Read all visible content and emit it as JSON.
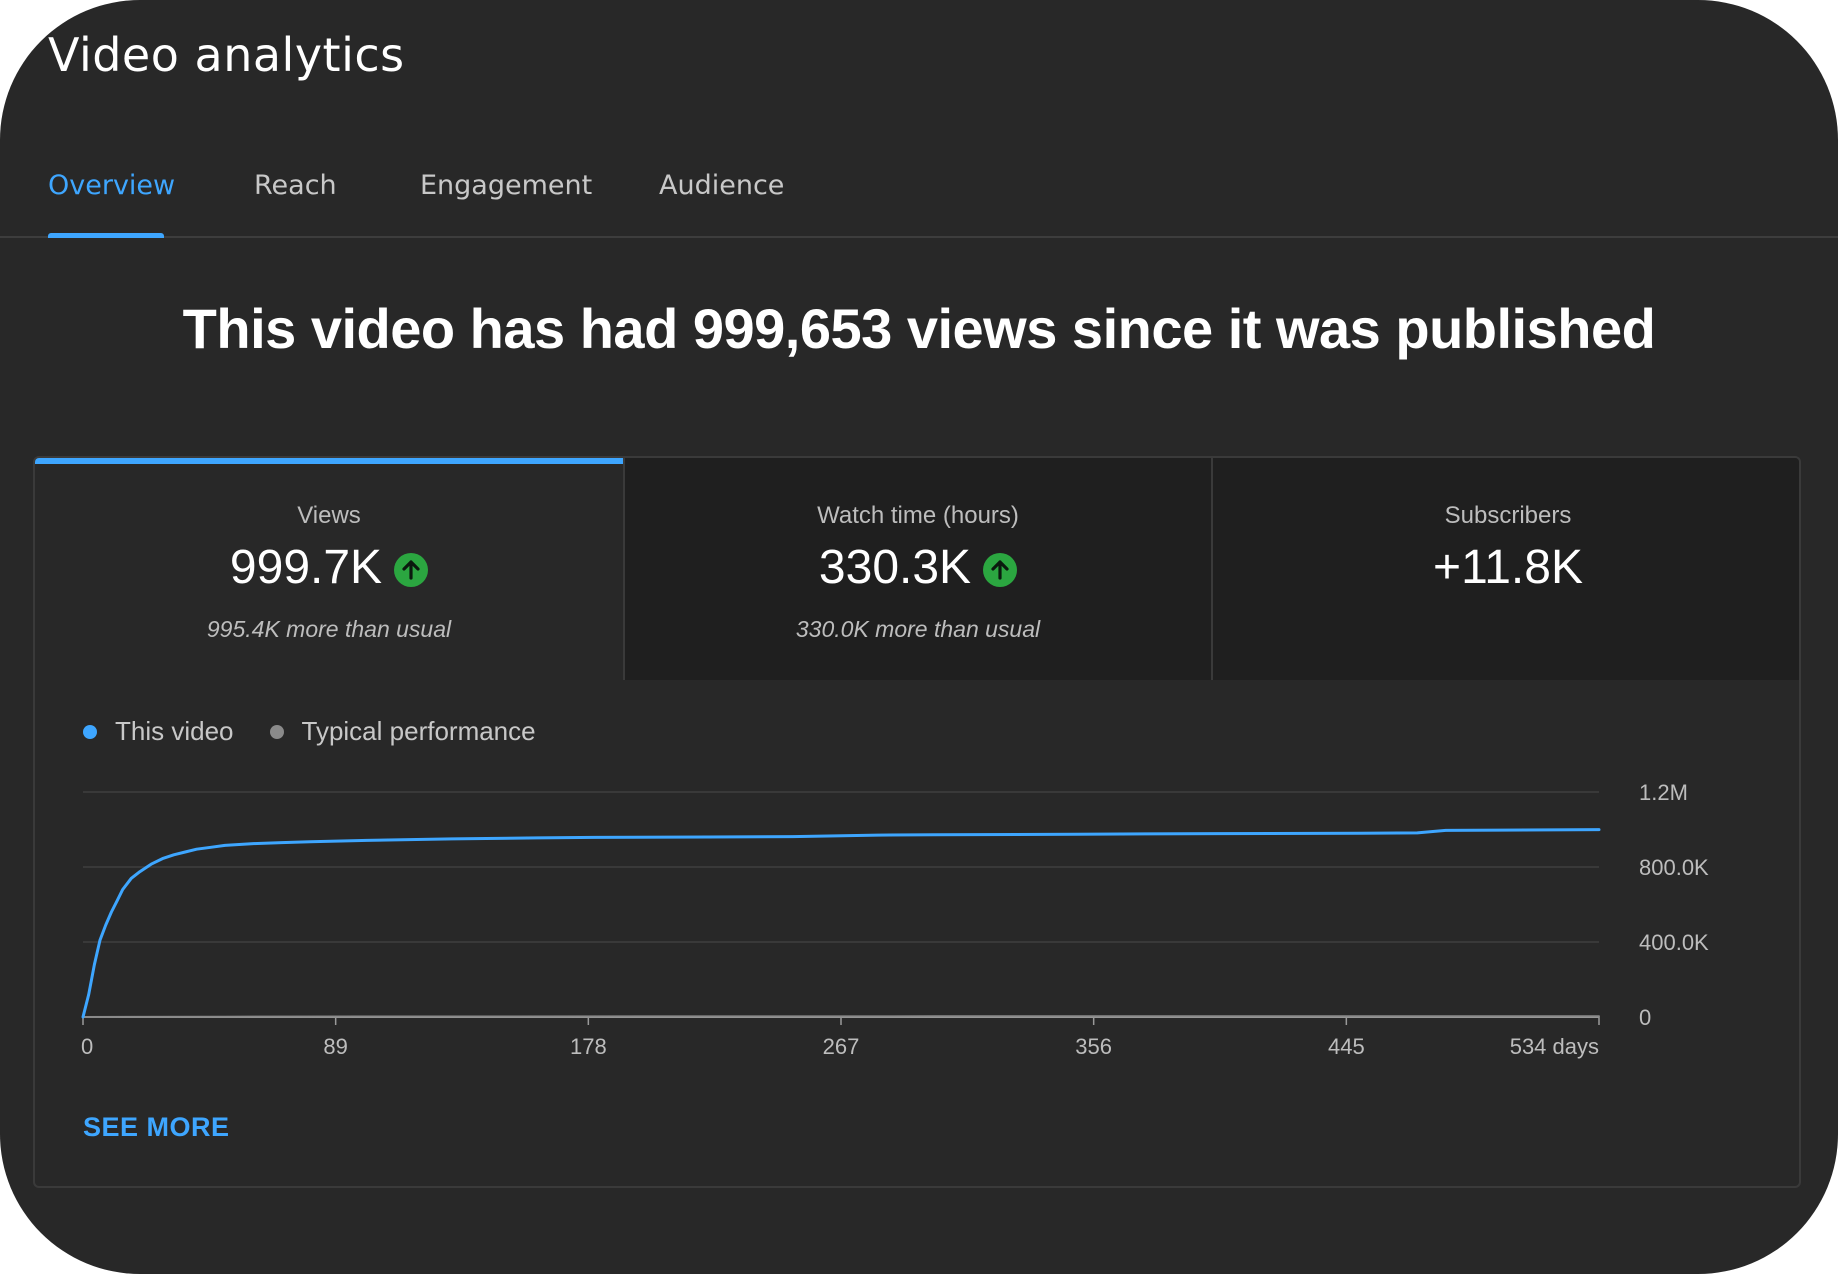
{
  "app": {
    "title": "Video analytics"
  },
  "tabs": [
    {
      "label": "Overview",
      "active": true
    },
    {
      "label": "Reach"
    },
    {
      "label": "Engagement"
    },
    {
      "label": "Audience"
    }
  ],
  "headline": "This video has had 999,653 views since it was published",
  "metrics": [
    {
      "label": "Views",
      "value": "999.7K",
      "trend": "up",
      "sub": "995.4K more than usual",
      "selected": true
    },
    {
      "label": "Watch time (hours)",
      "value": "330.3K",
      "trend": "up",
      "sub": "330.0K more than usual"
    },
    {
      "label": "Subscribers",
      "value": "+11.8K"
    }
  ],
  "legend": {
    "this_video": "This video",
    "typical": "Typical performance"
  },
  "colors": {
    "accent": "#3ea6ff",
    "line": "#3ea6ff",
    "typical": "#8a8a8a",
    "trend_up": "#2ba640"
  },
  "actions": {
    "see_more": "SEE MORE"
  },
  "chart_data": {
    "type": "line",
    "x_tick_labels": [
      "0",
      "89",
      "178",
      "267",
      "356",
      "445",
      "534 days"
    ],
    "x_ticks": [
      0,
      89,
      178,
      267,
      356,
      445,
      534
    ],
    "y_tick_labels": [
      "0",
      "400.0K",
      "800.0K",
      "1.2M"
    ],
    "y_ticks": [
      0,
      400000,
      800000,
      1200000
    ],
    "xlim": [
      0,
      534
    ],
    "ylim": [
      0,
      1200000
    ],
    "y_axis_side": "right",
    "grid": true,
    "legend_position": "top-left",
    "series": [
      {
        "name": "This video",
        "x": [
          0,
          2,
          4,
          6,
          8,
          10,
          12,
          14,
          17,
          20,
          24,
          28,
          32,
          36,
          40,
          45,
          50,
          60,
          70,
          80,
          100,
          130,
          160,
          180,
          220,
          250,
          280,
          300,
          350,
          400,
          450,
          470,
          480,
          500,
          534
        ],
        "values": [
          0,
          120000,
          280000,
          410000,
          490000,
          560000,
          620000,
          680000,
          740000,
          775000,
          815000,
          845000,
          865000,
          880000,
          895000,
          905000,
          915000,
          925000,
          930000,
          935000,
          942000,
          950000,
          955000,
          958000,
          960000,
          962000,
          970000,
          972000,
          975000,
          978000,
          980000,
          982000,
          995000,
          997000,
          999653
        ]
      },
      {
        "name": "Typical performance",
        "x": [
          0,
          50,
          100,
          200,
          300,
          400,
          534
        ],
        "values": [
          0,
          1500,
          2500,
          3300,
          3800,
          4100,
          4300
        ]
      }
    ]
  }
}
